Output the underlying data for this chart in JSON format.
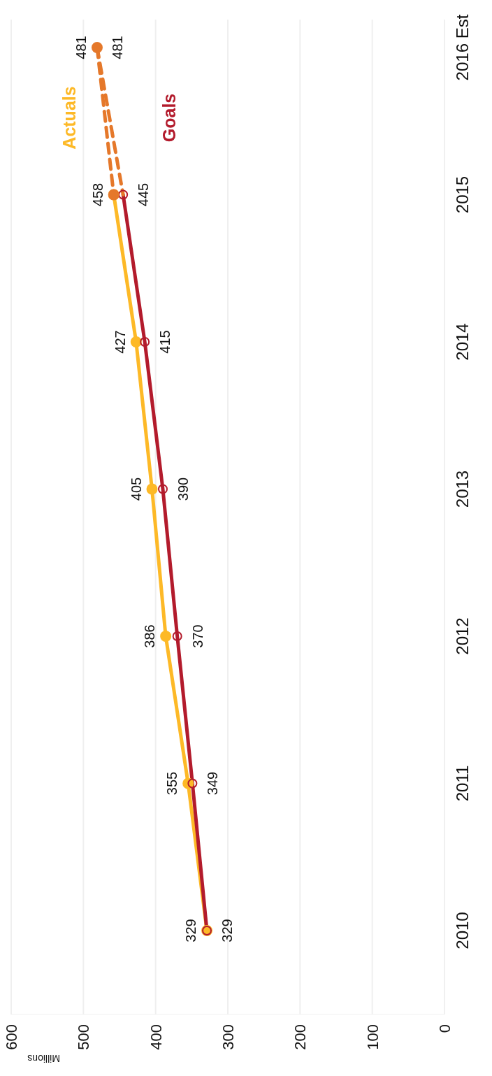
{
  "chart_data": {
    "type": "line",
    "orientation": "horizontal",
    "categories": [
      "2016 Est",
      "2015",
      "2014",
      "2013",
      "2012",
      "2011",
      "2010"
    ],
    "xlabel": "Millions",
    "xlim": [
      600,
      0
    ],
    "xticks": [
      600,
      500,
      400,
      300,
      200,
      100,
      0
    ],
    "grid": "x",
    "series": [
      {
        "name": "Actuals",
        "color": "#fdb927",
        "marker": "circle",
        "line_style": "solid",
        "values": [
          null,
          458,
          427,
          405,
          386,
          355,
          329
        ],
        "value_labels": [
          null,
          "458",
          "427",
          "405",
          "386",
          "355",
          "329"
        ]
      },
      {
        "name": "Goals",
        "color": "#b31b2c",
        "marker": "circle",
        "line_style": "solid",
        "values": [
          null,
          445,
          415,
          390,
          370,
          349,
          329
        ],
        "value_labels": [
          null,
          "445",
          "415",
          "390",
          "370",
          "349",
          "329"
        ]
      },
      {
        "color": "#e5782a",
        "marker": "circle",
        "line_style": "dashed",
        "values": [
          481,
          458,
          null,
          null,
          null,
          null,
          null
        ],
        "value_labels": [
          "481",
          null,
          null,
          null,
          null,
          null,
          null
        ]
      },
      {
        "color": "#e5782a",
        "marker": "none",
        "line_style": "dashed",
        "values": [
          481,
          445,
          null,
          null,
          null,
          null,
          null
        ],
        "value_labels": [
          "481",
          null,
          null,
          null,
          null,
          null,
          null
        ]
      }
    ]
  }
}
